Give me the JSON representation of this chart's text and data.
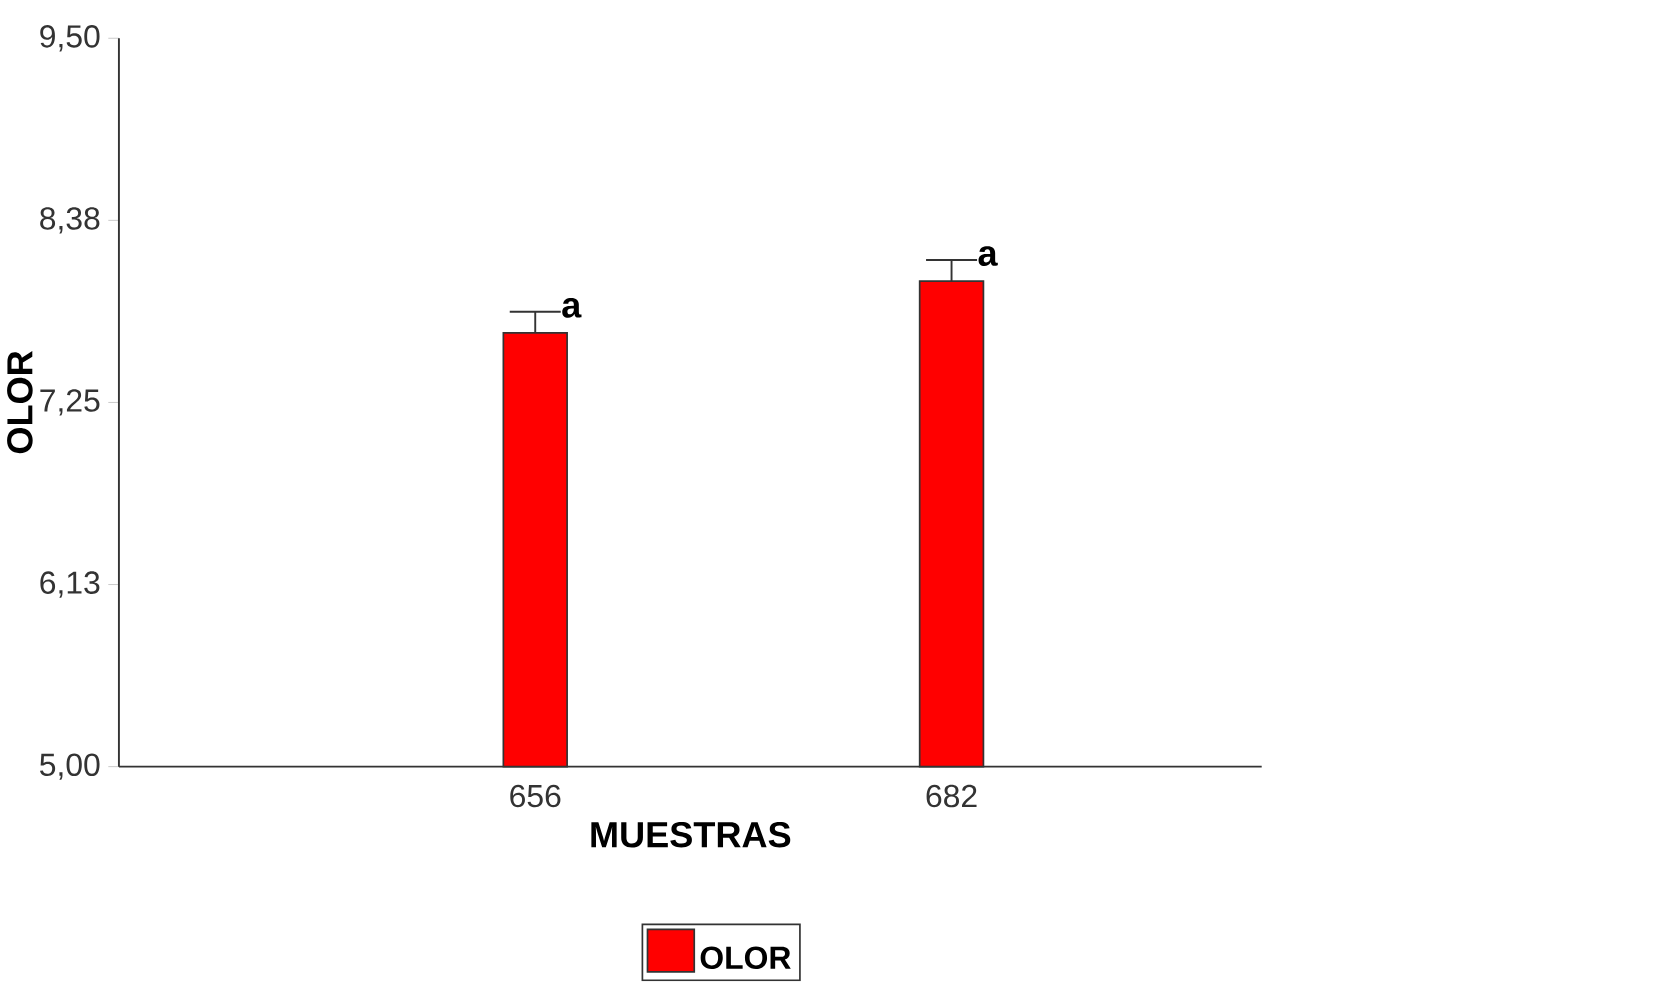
{
  "chart_data": {
    "type": "bar",
    "xlabel": "MUESTRAS",
    "ylabel": "OLOR",
    "categories": [
      "656",
      "682"
    ],
    "series": [
      {
        "name": "OLOR",
        "color": "#ff0000",
        "values": [
          7.68,
          8.0
        ],
        "errors": [
          [
            7.68,
            7.81
          ],
          [
            8.0,
            8.13
          ]
        ]
      }
    ],
    "ylim": [
      5.0,
      9.5
    ],
    "yticks": [
      {
        "value": 5.0,
        "label": "5,00"
      },
      {
        "value": 6.125,
        "label": "6,13"
      },
      {
        "value": 7.25,
        "label": "7,25"
      },
      {
        "value": 8.375,
        "label": "8,38"
      },
      {
        "value": 9.5,
        "label": "9,50"
      }
    ],
    "annotations": [
      {
        "text": "a",
        "x": "656",
        "y": 7.81
      },
      {
        "text": "a",
        "x": "682",
        "y": 8.13
      }
    ],
    "legend": "bottom",
    "grid": false
  }
}
